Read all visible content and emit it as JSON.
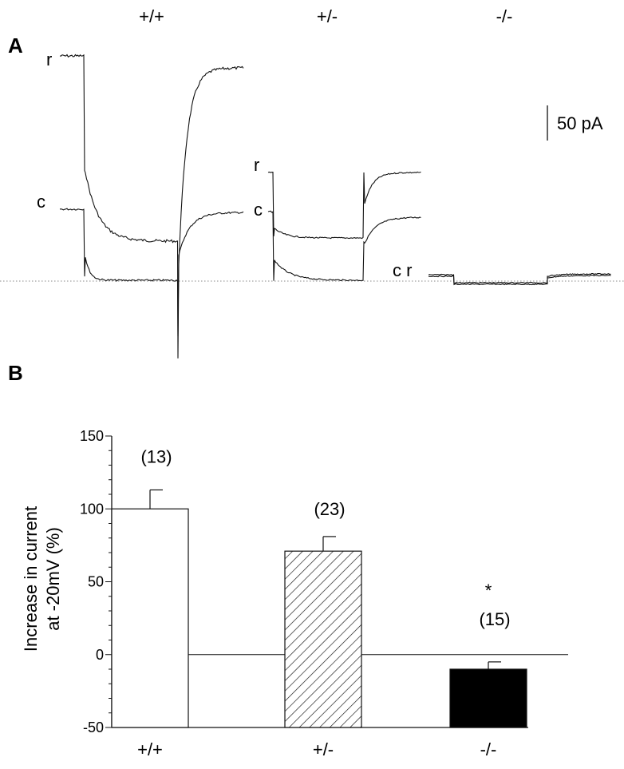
{
  "panel_a": {
    "letter": "A",
    "genotypes": [
      "+/+",
      "+/-",
      "-/-"
    ],
    "scale_bar": {
      "label": "50 pA",
      "value_pA": 50
    },
    "trace_labels": {
      "wt_r": "r",
      "wt_c": "c",
      "het_r": "r",
      "het_c": "c",
      "ko_cr": "c r"
    }
  },
  "panel_b": {
    "letter": "B"
  },
  "chart_data": {
    "type": "bar",
    "categories": [
      "+/+",
      "+/-",
      "-/-"
    ],
    "values": [
      100,
      71,
      -10
    ],
    "errors": [
      13,
      10,
      5
    ],
    "n_labels": [
      "(13)",
      "(23)",
      "(15)"
    ],
    "significance": [
      "",
      "",
      "*"
    ],
    "fills": [
      "open",
      "hatched",
      "solid"
    ],
    "ylabel_line1": "Increase in current",
    "ylabel_line2": "at -20mV (%)",
    "xlabel": "",
    "ylim": [
      -50,
      150
    ],
    "yticks": [
      -50,
      0,
      50,
      100,
      150
    ]
  }
}
